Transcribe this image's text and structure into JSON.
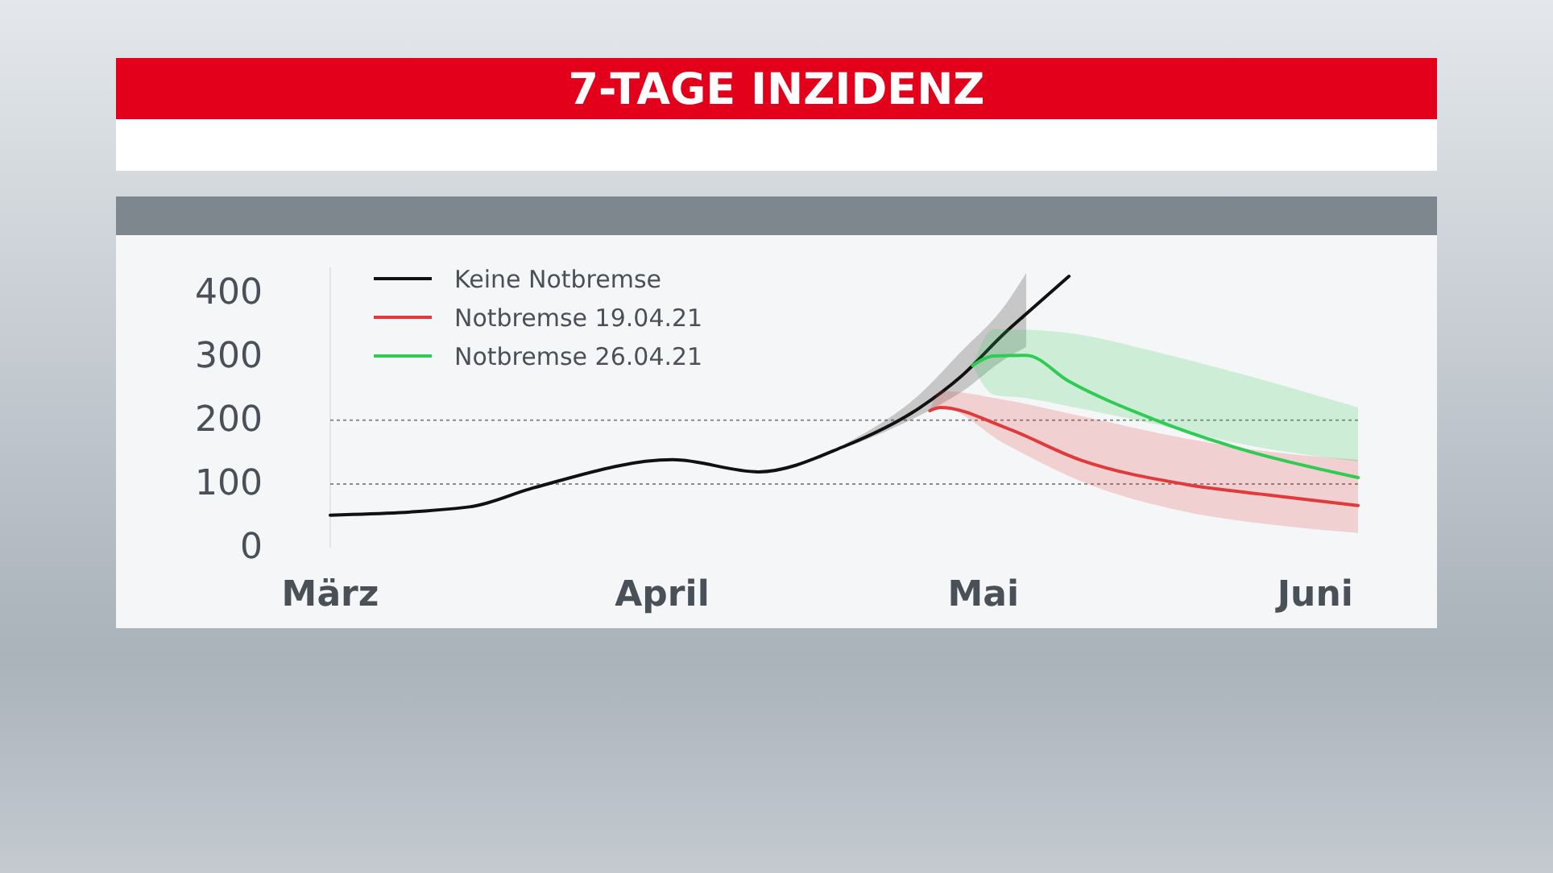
{
  "chart_data": {
    "type": "line",
    "title": "7-TAGE INZIDENZ",
    "xlim": [
      "--03-01",
      "--06-05"
    ],
    "xticks": [
      {
        "value": "--03-01",
        "label": "März"
      },
      {
        "value": "--04-01",
        "label": "April"
      },
      {
        "value": "--05-01",
        "label": "Mai"
      },
      {
        "value": "--06-01",
        "label": "Juni"
      }
    ],
    "ylim": [
      0,
      440
    ],
    "yticks": [
      0,
      100,
      200,
      300,
      400
    ],
    "grid": false,
    "legend": "top left",
    "line_style": "solid",
    "marker": "none",
    "ref_lines": [
      {
        "axis": "y",
        "value": 100,
        "line_style": "dotted",
        "color": "#8a8a8a"
      },
      {
        "axis": "y",
        "value": 200,
        "line_style": "dotted",
        "color": "#8a8a8a"
      }
    ],
    "series": [
      {
        "name": "Keine Notbremse",
        "color": "#111111",
        "x": [
          "--03-01",
          "--03-14",
          "--03-20",
          "--04-02",
          "--04-10",
          "--04-18",
          "--04-25",
          "--04-29",
          "--05-03",
          "--05-05",
          "--05-09"
        ],
        "values": [
          51,
          64,
          94,
          138,
          119,
          159,
          219,
          270,
          337,
          367,
          426
        ],
        "lower": [
          null,
          null,
          null,
          null,
          null,
          156,
          207,
          245,
          296,
          315,
          null
        ],
        "upper": [
          null,
          null,
          null,
          null,
          null,
          162,
          240,
          309,
          380,
          431,
          null
        ]
      },
      {
        "name": "Notbremse 19.04.21",
        "color": "#e03a3a",
        "x": [
          "--04-26",
          "--04-27",
          "--05-03",
          "--05-10",
          "--05-20",
          "--05-28",
          "--06-05"
        ],
        "values": [
          215,
          220,
          189,
          138,
          99,
          82,
          66
        ],
        "lower": [
          215,
          220,
          163,
          105,
          56,
          36,
          23
        ],
        "upper": [
          215,
          246,
          232,
          207,
          171,
          150,
          138
        ]
      },
      {
        "name": "Notbremse 26.04.21",
        "color": "#2ecc55",
        "x": [
          "--04-30",
          "--05-02",
          "--05-05",
          "--05-09",
          "--05-17",
          "--05-25",
          "--06-05"
        ],
        "values": [
          286,
          301,
          302,
          261,
          201,
          155,
          110
        ],
        "lower": [
          286,
          240,
          235,
          222,
          194,
          163,
          135
        ],
        "upper": [
          286,
          343,
          342,
          337,
          308,
          273,
          220
        ]
      }
    ]
  }
}
